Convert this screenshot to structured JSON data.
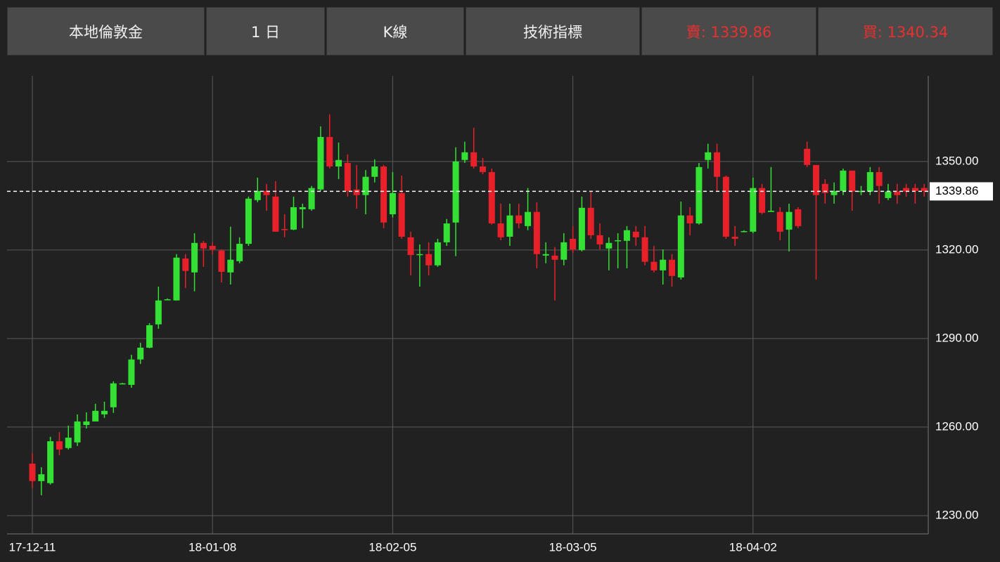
{
  "toolbar": {
    "buttons": [
      "本地倫敦金",
      "1 日",
      "K線",
      "技術指標",
      "賣: 1339.86",
      "買: 1340.34"
    ]
  },
  "chart_data": {
    "type": "candlestick",
    "categories": [
      "17-12-11",
      null,
      null,
      null,
      null,
      null,
      null,
      null,
      null,
      null,
      null,
      null,
      null,
      null,
      null,
      null,
      null,
      null,
      null,
      null,
      "18-01-08",
      null,
      null,
      null,
      null,
      null,
      null,
      null,
      null,
      null,
      null,
      null,
      null,
      null,
      null,
      null,
      null,
      null,
      null,
      null,
      "18-02-05",
      null,
      null,
      null,
      null,
      null,
      null,
      null,
      null,
      null,
      null,
      null,
      null,
      null,
      null,
      null,
      null,
      null,
      null,
      null,
      "18-03-05",
      null,
      null,
      null,
      null,
      null,
      null,
      null,
      null,
      null,
      null,
      null,
      null,
      null,
      null,
      null,
      null,
      null,
      null,
      null,
      "18-04-02",
      null,
      null,
      null,
      null,
      null,
      null,
      null,
      null,
      null,
      null,
      null,
      null,
      null,
      null,
      null,
      null,
      null,
      null,
      null
    ],
    "open": [
      1247.6,
      1241.7,
      1241,
      1255.2,
      1252.9,
      1254.8,
      1260.7,
      1261.9,
      1264.3,
      1266.7,
      1274.5,
      1274.3,
      1282.9,
      1286.9,
      1294.8,
      1303.1,
      1302.9,
      1317.1,
      1312.4,
      1322.4,
      1321.4,
      1319.8,
      1312.4,
      1316.2,
      1322.1,
      1336.9,
      1340,
      1338.1,
      1327.1,
      1326.9,
      1333.8,
      1333.8,
      1340.5,
      1358.3,
      1348.3,
      1349.5,
      1340.5,
      1338.6,
      1344.8,
      1348.3,
      1332.1,
      1339.3,
      1324.3,
      1318.3,
      1318.6,
      1314.8,
      1322.6,
      1329.3,
      1350.5,
      1353.1,
      1348.3,
      1346.4,
      1329,
      1324.5,
      1331.7,
      1328.1,
      1332.9,
      1318.1,
      1318.1,
      1316.7,
      1323.8,
      1320,
      1334.3,
      1325,
      1320.5,
      1323.1,
      1323.1,
      1326.2,
      1324.3,
      1316,
      1313.1,
      1316.7,
      1310.7,
      1331.7,
      1329,
      1350.5,
      1353.1,
      1344.8,
      1324.5,
      1326.2,
      1326.2,
      1341,
      1332.9,
      1332.9,
      1326.9,
      1333.8,
      1354.3,
      1348.8,
      1342.4,
      1338.6,
      1340,
      1346.9,
      1339.8,
      1339.8,
      1346.4,
      1337.6,
      1339.8,
      1341,
      1341,
      1341
    ],
    "high": [
      1251.2,
      1246.4,
      1256.7,
      1258.3,
      1260.5,
      1264.3,
      1265,
      1267.9,
      1268.6,
      1275.5,
      1275,
      1284.5,
      1288.6,
      1295.2,
      1307.6,
      1303.6,
      1318.6,
      1318.6,
      1325.7,
      1323.1,
      1322.6,
      1320.2,
      1327.9,
      1324.3,
      1338.1,
      1344.5,
      1342.4,
      1343.3,
      1332.1,
      1338.1,
      1335.7,
      1341.7,
      1361.9,
      1366,
      1356.4,
      1352.4,
      1348.8,
      1347.1,
      1350.7,
      1348.8,
      1346.4,
      1345.2,
      1326.2,
      1321.9,
      1322.6,
      1323.8,
      1330.5,
      1354.8,
      1356.7,
      1361.4,
      1351.2,
      1347.6,
      1335.7,
      1335.7,
      1335.7,
      1341,
      1336.2,
      1322.6,
      1321,
      1325.7,
      1328.1,
      1338.1,
      1340,
      1329,
      1324.3,
      1325.7,
      1328.1,
      1328.1,
      1328.1,
      1321.4,
      1320.2,
      1318.6,
      1336.4,
      1334.5,
      1349.5,
      1356,
      1356,
      1345.2,
      1328.1,
      1326.7,
      1344.5,
      1342.4,
      1348.1,
      1334.5,
      1335.7,
      1334.5,
      1356.7,
      1348.8,
      1344,
      1342.9,
      1347.6,
      1346.9,
      1341.7,
      1348.1,
      1348.1,
      1342.4,
      1342.4,
      1342.4,
      1342.4,
      1342.4
    ],
    "low": [
      1239.3,
      1236.9,
      1240.5,
      1250.5,
      1252.4,
      1253.6,
      1259.5,
      1261.9,
      1263.1,
      1264.8,
      1274.5,
      1273.3,
      1281.4,
      1286.7,
      1293.3,
      1303,
      1302.9,
      1307.1,
      1306,
      1314.3,
      1318.6,
      1309,
      1308.3,
      1315.5,
      1321.4,
      1336.2,
      1333.3,
      1326.2,
      1324.3,
      1326.7,
      1327.4,
      1333.3,
      1340,
      1347.6,
      1344,
      1338.1,
      1334,
      1332.1,
      1342.9,
      1327.4,
      1331,
      1323.8,
      1311.4,
      1307.6,
      1311.4,
      1314.3,
      1321.4,
      1317.9,
      1349.5,
      1347.6,
      1345.7,
      1328.6,
      1323.3,
      1321.4,
      1327.4,
      1326.7,
      1313.8,
      1315.5,
      1302.9,
      1314.8,
      1319,
      1319.5,
      1323.8,
      1320.2,
      1313.1,
      1313.8,
      1313.8,
      1321.4,
      1314.8,
      1312.4,
      1308.3,
      1307.6,
      1310,
      1325,
      1328.6,
      1347.6,
      1340,
      1323.8,
      1321.4,
      1326,
      1325.7,
      1332.1,
      1332.9,
      1323.3,
      1319.5,
      1327.4,
      1348.1,
      1310,
      1335.7,
      1335.7,
      1338.6,
      1333.3,
      1338.6,
      1338.6,
      1335.7,
      1336.9,
      1335.7,
      1338.1,
      1335.7,
      1338.1
    ],
    "close": [
      1241.7,
      1244,
      1255.2,
      1252.4,
      1256.4,
      1261.9,
      1261.9,
      1265.5,
      1265.5,
      1274.8,
      1274.8,
      1282.9,
      1286.9,
      1294.5,
      1302.9,
      1303.3,
      1317.4,
      1312.9,
      1322.4,
      1320.5,
      1320.2,
      1312.6,
      1316.7,
      1322.1,
      1337.4,
      1340,
      1338.6,
      1326.2,
      1326.9,
      1334.5,
      1334.5,
      1341,
      1358.3,
      1348.3,
      1350.5,
      1340,
      1338.6,
      1344.8,
      1348.3,
      1329.3,
      1339.3,
      1324.5,
      1318.3,
      1318.6,
      1314.8,
      1322.6,
      1329,
      1350,
      1353.1,
      1348.3,
      1346.4,
      1329,
      1324.3,
      1331.7,
      1329,
      1332.9,
      1318.6,
      1318.6,
      1316.7,
      1322.6,
      1320.2,
      1334.3,
      1325,
      1321.9,
      1322.4,
      1323.3,
      1326.7,
      1324.3,
      1316,
      1313.1,
      1316.7,
      1311.2,
      1331.7,
      1329,
      1348.1,
      1353.1,
      1344.8,
      1324.5,
      1323.8,
      1326.4,
      1341,
      1332.6,
      1333.3,
      1326.2,
      1332.9,
      1328.1,
      1348.8,
      1338.6,
      1339.3,
      1340,
      1346.9,
      1339.8,
      1340,
      1346.4,
      1341.7,
      1339.8,
      1338.6,
      1339.8,
      1340,
      1340
    ],
    "up_color": "#33e033",
    "down_color": "#e8202a",
    "ylim": [
      1223.8,
      1379
    ],
    "yticks": [
      {
        "value": 1230,
        "label": "1230.00"
      },
      {
        "value": 1260,
        "label": "1260.00"
      },
      {
        "value": 1290,
        "label": "1290.00"
      },
      {
        "value": 1320,
        "label": "1320.00"
      },
      {
        "value": 1350,
        "label": "1350.00"
      }
    ],
    "price_line": 1339.86,
    "grid": true
  }
}
